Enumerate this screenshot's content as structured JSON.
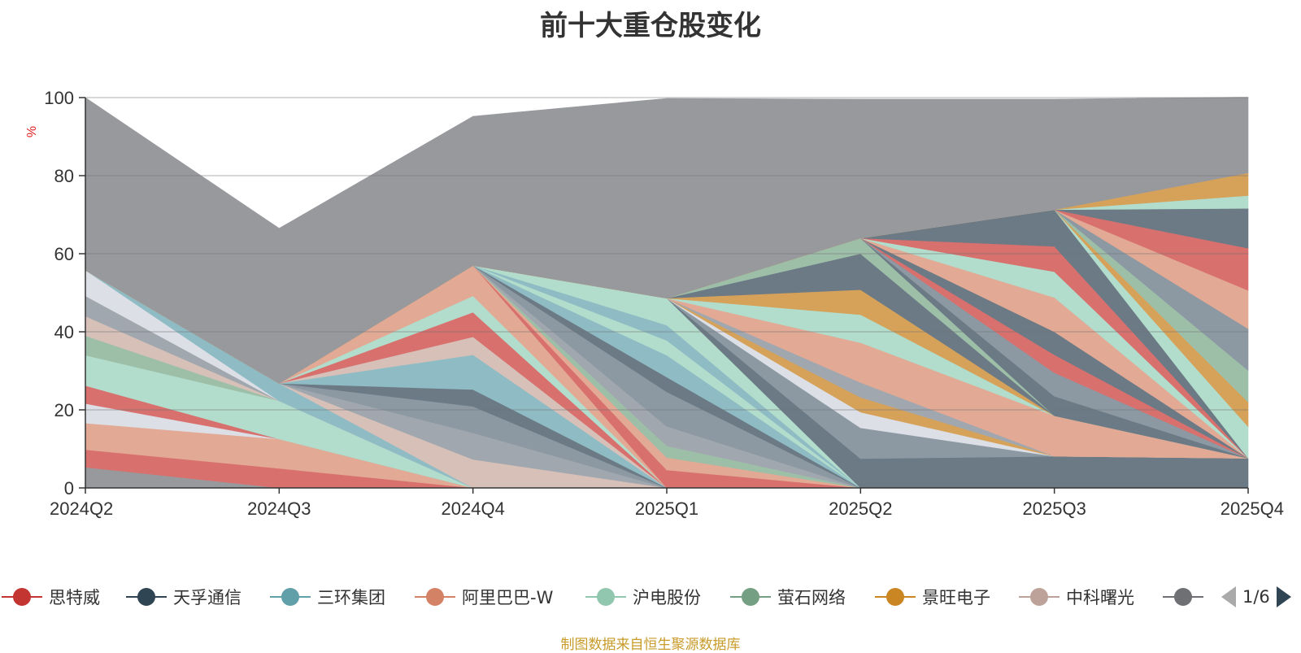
{
  "chart_data": {
    "type": "area",
    "title": "前十大重仓股变化",
    "ylabel": "%",
    "xlabel": "",
    "ylim": [
      0,
      100
    ],
    "y_ticks": [
      0,
      20,
      40,
      60,
      80,
      100
    ],
    "grid": true,
    "stacked": true,
    "x": [
      "2024Q2",
      "2024Q3",
      "2024Q4",
      "2025Q1",
      "2025Q2",
      "2025Q3",
      "2025Q4"
    ],
    "series": [
      {
        "name": "",
        "color": "#98999d",
        "values": [
          5.3,
          0,
          0,
          0,
          0,
          0,
          0
        ]
      },
      {
        "name": "",
        "color": "#d8706e",
        "values": [
          4.5,
          5.0,
          0,
          0,
          0,
          0,
          0
        ]
      },
      {
        "name": "",
        "color": "#e2a994",
        "values": [
          6.8,
          7.5,
          0,
          0,
          0,
          0,
          0
        ]
      },
      {
        "name": "",
        "color": "#dcdfe6",
        "values": [
          5.0,
          0,
          0,
          0,
          0,
          0,
          0
        ]
      },
      {
        "name": "",
        "color": "#d8706e",
        "values": [
          4.6,
          0,
          0,
          0,
          0,
          0,
          0
        ]
      },
      {
        "name": "",
        "color": "#b2dccb",
        "values": [
          7.8,
          9.8,
          0,
          0,
          0,
          0,
          0
        ]
      },
      {
        "name": "",
        "color": "#9dbfa8",
        "values": [
          5.0,
          0,
          0,
          0,
          0,
          0,
          0
        ]
      },
      {
        "name": "",
        "color": "#d6c0b8",
        "values": [
          5.0,
          0,
          0,
          0,
          0,
          0,
          0
        ]
      },
      {
        "name": "",
        "color": "#a1a7af",
        "values": [
          5.2,
          0,
          0,
          0,
          0,
          0,
          0
        ]
      },
      {
        "name": "",
        "color": "#dcdfe6",
        "values": [
          6.6,
          0,
          0,
          0,
          0,
          0,
          0
        ]
      },
      {
        "name": "",
        "color": "#8fbcc4",
        "values": [
          0,
          4.5,
          0,
          0,
          0,
          0,
          0
        ]
      },
      {
        "name": "",
        "color": "#d6c0b8",
        "values": [
          0,
          0,
          7.3,
          0,
          0,
          0,
          0
        ]
      },
      {
        "name": "",
        "color": "#a1a7af",
        "values": [
          0,
          0,
          6.8,
          0,
          0,
          0,
          0
        ]
      },
      {
        "name": "",
        "color": "#8c99a3",
        "values": [
          0,
          0,
          6.8,
          0,
          0,
          0,
          0
        ]
      },
      {
        "name": "",
        "color": "#6c7a86",
        "values": [
          0,
          0,
          4.3,
          0,
          0,
          0,
          0
        ]
      },
      {
        "name": "",
        "color": "#8fbcc4",
        "values": [
          0,
          0,
          8.9,
          0,
          0,
          0,
          0
        ]
      },
      {
        "name": "",
        "color": "#d6c0b8",
        "values": [
          0,
          0,
          4.6,
          0,
          0,
          0,
          0
        ]
      },
      {
        "name": "",
        "color": "#d8706e",
        "values": [
          0,
          0,
          6.3,
          0,
          0,
          0,
          0
        ]
      },
      {
        "name": "",
        "color": "#b2dccb",
        "values": [
          0,
          0,
          4.2,
          0,
          0,
          0,
          0
        ]
      },
      {
        "name": "",
        "color": "#e2a994",
        "values": [
          0,
          0,
          7.8,
          0,
          0,
          0,
          0
        ]
      },
      {
        "name": "",
        "color": "#d8706e",
        "values": [
          0,
          0,
          0,
          4.6,
          0,
          0,
          0
        ]
      },
      {
        "name": "",
        "color": "#e2a994",
        "values": [
          0,
          0,
          0,
          3.2,
          0,
          0,
          0
        ]
      },
      {
        "name": "",
        "color": "#9dbfa8",
        "values": [
          0,
          0,
          0,
          3.0,
          0,
          0,
          0
        ]
      },
      {
        "name": "",
        "color": "#a1a7af",
        "values": [
          0,
          0,
          0,
          5.0,
          0,
          0,
          0
        ]
      },
      {
        "name": "",
        "color": "#8c99a3",
        "values": [
          0,
          0,
          0,
          8.8,
          0,
          0,
          0
        ]
      },
      {
        "name": "",
        "color": "#6c7a86",
        "values": [
          0,
          0,
          0,
          3.8,
          0,
          0,
          0
        ]
      },
      {
        "name": "",
        "color": "#8fbcc4",
        "values": [
          0,
          0,
          0,
          5.6,
          0,
          0,
          0
        ]
      },
      {
        "name": "",
        "color": "#b2dccb",
        "values": [
          0,
          0,
          0,
          3.8,
          0,
          0,
          0
        ]
      },
      {
        "name": "",
        "color": "#8fbcc4",
        "values": [
          0,
          0,
          0,
          3.9,
          0,
          0,
          0
        ]
      },
      {
        "name": "",
        "color": "#b2dccb",
        "values": [
          0,
          0,
          0,
          6.9,
          0,
          0,
          0
        ]
      },
      {
        "name": "",
        "color": "#6c7a86",
        "values": [
          0,
          0,
          0,
          0,
          7.5,
          8.1,
          7.6
        ]
      },
      {
        "name": "",
        "color": "#8c99a3",
        "values": [
          0,
          0,
          0,
          0,
          7.9,
          0,
          0
        ]
      },
      {
        "name": "",
        "color": "#dcdfe6",
        "values": [
          0,
          0,
          0,
          0,
          4.0,
          0,
          0
        ]
      },
      {
        "name": "",
        "color": "#d6a25a",
        "values": [
          0,
          0,
          0,
          0,
          3.8,
          0,
          0
        ]
      },
      {
        "name": "",
        "color": "#a1a7af",
        "values": [
          0,
          0,
          0,
          0,
          3.8,
          0,
          0
        ]
      },
      {
        "name": "",
        "color": "#e2a994",
        "values": [
          0,
          0,
          0,
          0,
          10.2,
          10.4,
          0
        ]
      },
      {
        "name": "",
        "color": "#b2dccb",
        "values": [
          0,
          0,
          0,
          0,
          7.2,
          0,
          0
        ]
      },
      {
        "name": "",
        "color": "#d6a25a",
        "values": [
          0,
          0,
          0,
          0,
          6.4,
          0,
          0
        ]
      },
      {
        "name": "",
        "color": "#6c7a86",
        "values": [
          0,
          0,
          0,
          0,
          9.2,
          0,
          0
        ]
      },
      {
        "name": "",
        "color": "#9dbfa8",
        "values": [
          0,
          0,
          0,
          0,
          4.0,
          0,
          0
        ]
      },
      {
        "name": "",
        "color": "#6c7a86",
        "values": [
          0,
          0,
          0,
          0,
          0,
          5.0,
          0
        ]
      },
      {
        "name": "",
        "color": "#8c99a3",
        "values": [
          0,
          0,
          0,
          0,
          0,
          6.0,
          0
        ]
      },
      {
        "name": "",
        "color": "#d8706e",
        "values": [
          0,
          0,
          0,
          0,
          0,
          4.6,
          0
        ]
      },
      {
        "name": "",
        "color": "#6c7a86",
        "values": [
          0,
          0,
          0,
          0,
          0,
          5.9,
          0
        ]
      },
      {
        "name": "",
        "color": "#e2a994",
        "values": [
          0,
          0,
          0,
          0,
          0,
          8.8,
          0
        ]
      },
      {
        "name": "",
        "color": "#b2dccb",
        "values": [
          0,
          0,
          0,
          0,
          0,
          6.6,
          0
        ]
      },
      {
        "name": "",
        "color": "#d8706e",
        "values": [
          0,
          0,
          0,
          0,
          0,
          6.5,
          0
        ]
      },
      {
        "name": "",
        "color": "#6c7a86",
        "values": [
          0,
          0,
          0,
          0,
          0,
          9.4,
          0
        ]
      },
      {
        "name": "",
        "color": "#b2dccb",
        "values": [
          0,
          0,
          0,
          0,
          0,
          0,
          8.1
        ]
      },
      {
        "name": "",
        "color": "#d6a25a",
        "values": [
          0,
          0,
          0,
          0,
          0,
          0,
          6.3
        ]
      },
      {
        "name": "",
        "color": "#9dbfa8",
        "values": [
          0,
          0,
          0,
          0,
          0,
          0,
          8.1
        ]
      },
      {
        "name": "",
        "color": "#8c99a3",
        "values": [
          0,
          0,
          0,
          0,
          0,
          0,
          10.7
        ]
      },
      {
        "name": "",
        "color": "#e2a994",
        "values": [
          0,
          0,
          0,
          0,
          0,
          0,
          9.8
        ]
      },
      {
        "name": "",
        "color": "#d8706e",
        "values": [
          0,
          0,
          0,
          0,
          0,
          0,
          10.8
        ]
      },
      {
        "name": "",
        "color": "#6c7a86",
        "values": [
          0,
          0,
          0,
          0,
          0,
          0,
          10.2
        ]
      },
      {
        "name": "",
        "color": "#b2dccb",
        "values": [
          0,
          0,
          0,
          0,
          0,
          0,
          3.3
        ]
      },
      {
        "name": "",
        "color": "#d6a25a",
        "values": [
          0,
          0,
          0,
          0,
          0,
          0,
          5.8
        ]
      },
      {
        "name": "",
        "color": "#98999d",
        "values": [
          44.2,
          39.7,
          38.2,
          51.2,
          35.6,
          28.3,
          19.4
        ]
      }
    ],
    "legend_position": "bottom",
    "legend": [
      {
        "name": "思特威",
        "color": "#c23531"
      },
      {
        "name": "天孚通信",
        "color": "#2f4554"
      },
      {
        "name": "三环集团",
        "color": "#61a0a8"
      },
      {
        "name": "阿里巴巴-W",
        "color": "#d48265"
      },
      {
        "name": "沪电股份",
        "color": "#91c7ae"
      },
      {
        "name": "萤石网络",
        "color": "#749f83"
      },
      {
        "name": "景旺电子",
        "color": "#ca8622"
      },
      {
        "name": "中科曙光",
        "color": "#bda29a"
      },
      {
        "name": "",
        "color": "#6e7074"
      }
    ]
  },
  "pager": {
    "text": "1/6"
  },
  "source_note": "制图数据来自恒生聚源数据库"
}
